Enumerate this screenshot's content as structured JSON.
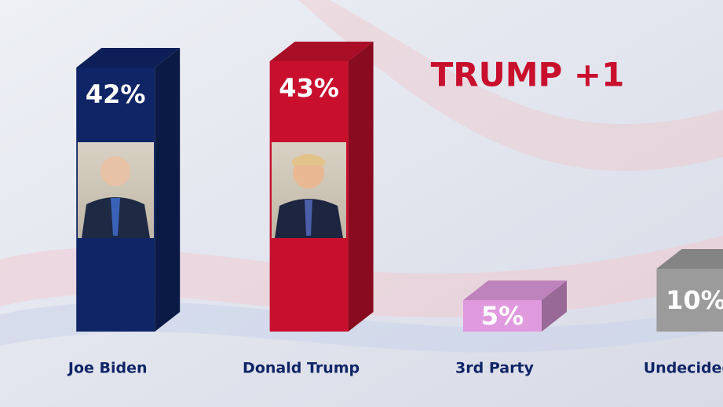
{
  "chart_data": {
    "type": "bar",
    "annotation": "TRUMP +1",
    "categories": [
      "Joe Biden",
      "Donald Trump",
      "3rd Party",
      "Undecided"
    ],
    "values": [
      42,
      43,
      5,
      10
    ],
    "value_labels": [
      "42%",
      "43%",
      "5%",
      "10%"
    ],
    "colors": [
      "#102566",
      "#c8102e",
      "#e09ade",
      "#9b9b9b"
    ]
  }
}
